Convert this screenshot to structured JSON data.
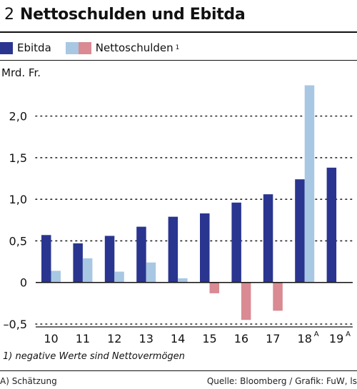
{
  "figure_number": "2",
  "title": "Nettoschulden und Ebitda",
  "legend": {
    "ebitda": "Ebitda",
    "net_debt": "Nettoschulden",
    "net_debt_note": "1"
  },
  "colors": {
    "ebitda": "#2a3590",
    "net_debt_positive": "#a8c7e3",
    "net_debt_negative": "#d98a92"
  },
  "footnote": "1) negative Werte sind Nettovermögen",
  "estimate_note": "A) Schätzung",
  "source": "Quelle: Bloomberg / Grafik: FuW, ls",
  "chart_data": {
    "type": "bar",
    "ylabel": "Mrd. Fr.",
    "ylim": [
      -0.5,
      2.4
    ],
    "yticks": [
      -0.5,
      0,
      0.5,
      1.0,
      1.5,
      2.0
    ],
    "ytick_labels": [
      "–0,5",
      "0",
      "0,5",
      "1,0",
      "1,5",
      "2,0"
    ],
    "grid": "dotted horizontal",
    "categories": [
      "10",
      "11",
      "12",
      "13",
      "14",
      "15",
      "16",
      "17",
      "18",
      "19"
    ],
    "category_superscripts": [
      "",
      "",
      "",
      "",
      "",
      "",
      "",
      "",
      "A",
      "A"
    ],
    "series": [
      {
        "name": "Ebitda",
        "values": [
          0.57,
          0.47,
          0.56,
          0.67,
          0.79,
          0.83,
          0.96,
          1.06,
          1.24,
          1.38
        ]
      },
      {
        "name": "Nettoschulden",
        "values": [
          0.14,
          0.29,
          0.13,
          0.24,
          0.05,
          -0.13,
          -0.45,
          -0.34,
          2.37,
          null
        ]
      }
    ]
  }
}
